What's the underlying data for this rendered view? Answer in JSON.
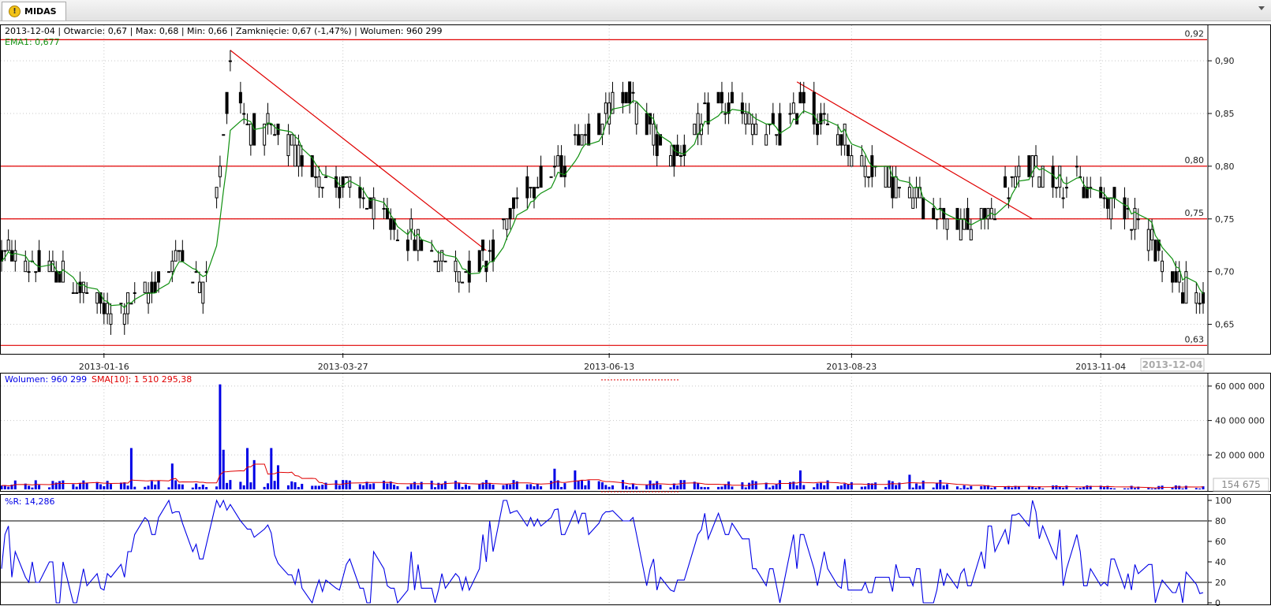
{
  "tab": {
    "icon": "warning-icon",
    "label": "MIDAS"
  },
  "price_panel": {
    "info_line": "2013-12-04 | Otwarcie: 0,67 | Max: 0,68 | Min: 0,66 | Zamknięcie: 0,67 (-1,47%)   | Wolumen: 960 299",
    "ema_label": "EMA1: 0,677",
    "cursor_date_label": "2013-12-04"
  },
  "volume_panel": {
    "volume_label": "Wolumen: 960 299",
    "sma_label": "SMA[10]: 1 510 295,38",
    "cursor_value_label": "154 675"
  },
  "williams_panel": {
    "label": "%R: 14,286"
  },
  "colors": {
    "candle": "#000000",
    "ema": "#109010",
    "line_red": "#e00000",
    "volume_bar": "#0000e6",
    "sma": "#e00000",
    "wr": "#0000e6",
    "grid": "#c8c8c8"
  },
  "chart_data": [
    {
      "type": "candlestick",
      "title": "",
      "ylabel": "",
      "ylim": [
        0.625,
        0.93
      ],
      "x_tick_labels": [
        "2013-01-16",
        "2013-03-27",
        "2013-06-13",
        "2013-08-23",
        "2013-11-04"
      ],
      "y_tick_labels": [
        "0,90",
        "0,85",
        "0,80",
        "0,75",
        "0,70",
        "0,65"
      ],
      "y_ticks": [
        0.9,
        0.85,
        0.8,
        0.75,
        0.7,
        0.65
      ],
      "x_range": [
        "2012-12-17",
        "2013-12-04"
      ],
      "horizontal_levels": [
        {
          "value": 0.92,
          "label": "0,92"
        },
        {
          "value": 0.8,
          "label": "0,80"
        },
        {
          "value": 0.75,
          "label": "0,75"
        },
        {
          "value": 0.63,
          "label": "0,63"
        }
      ],
      "trend_lines": [
        {
          "from": [
            "2013-02-22",
            0.91
          ],
          "to": [
            "2013-05-08",
            0.72
          ]
        },
        {
          "from": [
            "2013-08-07",
            0.88
          ],
          "to": [
            "2013-10-15",
            0.75
          ]
        }
      ],
      "ema_series_name": "EMA1",
      "anchors": [
        [
          "2012-12-17",
          0.72
        ],
        [
          "2012-12-24",
          0.71
        ],
        [
          "2013-01-02",
          0.7
        ],
        [
          "2013-01-10",
          0.68
        ],
        [
          "2013-01-18",
          0.66
        ],
        [
          "2013-01-25",
          0.67
        ],
        [
          "2013-02-01",
          0.69
        ],
        [
          "2013-02-08",
          0.72
        ],
        [
          "2013-02-14",
          0.68
        ],
        [
          "2013-02-20",
          0.82
        ],
        [
          "2013-02-22",
          0.9
        ],
        [
          "2013-02-27",
          0.84
        ],
        [
          "2013-03-06",
          0.83
        ],
        [
          "2013-03-14",
          0.81
        ],
        [
          "2013-03-21",
          0.79
        ],
        [
          "2013-03-28",
          0.78
        ],
        [
          "2013-04-04",
          0.76
        ],
        [
          "2013-04-11",
          0.74
        ],
        [
          "2013-04-18",
          0.73
        ],
        [
          "2013-04-25",
          0.71
        ],
        [
          "2013-05-02",
          0.7
        ],
        [
          "2013-05-09",
          0.72
        ],
        [
          "2013-05-16",
          0.76
        ],
        [
          "2013-05-23",
          0.79
        ],
        [
          "2013-05-30",
          0.8
        ],
        [
          "2013-06-04",
          0.83
        ],
        [
          "2013-06-12",
          0.85
        ],
        [
          "2013-06-18",
          0.87
        ],
        [
          "2013-06-24",
          0.84
        ],
        [
          "2013-07-01",
          0.81
        ],
        [
          "2013-07-08",
          0.83
        ],
        [
          "2013-07-15",
          0.86
        ],
        [
          "2013-07-22",
          0.85
        ],
        [
          "2013-07-29",
          0.83
        ],
        [
          "2013-08-05",
          0.84
        ],
        [
          "2013-08-09",
          0.87
        ],
        [
          "2013-08-14",
          0.84
        ],
        [
          "2013-08-20",
          0.83
        ],
        [
          "2013-08-27",
          0.8
        ],
        [
          "2013-09-03",
          0.79
        ],
        [
          "2013-09-10",
          0.77
        ],
        [
          "2013-09-17",
          0.76
        ],
        [
          "2013-09-24",
          0.74
        ],
        [
          "2013-10-01",
          0.75
        ],
        [
          "2013-10-08",
          0.78
        ],
        [
          "2013-10-15",
          0.8
        ],
        [
          "2013-10-22",
          0.79
        ],
        [
          "2013-10-29",
          0.78
        ],
        [
          "2013-11-05",
          0.77
        ],
        [
          "2013-11-12",
          0.76
        ],
        [
          "2013-11-19",
          0.73
        ],
        [
          "2013-11-26",
          0.69
        ],
        [
          "2013-12-04",
          0.67
        ]
      ]
    },
    {
      "type": "bar",
      "title": "",
      "ylim": [
        0,
        65000000
      ],
      "y_ticks": [
        60000000,
        40000000,
        20000000
      ],
      "y_tick_labels": [
        "60 000 000",
        "40 000 000",
        "20 000 000"
      ],
      "series": [
        {
          "name": "Wolumen"
        },
        {
          "name": "SMA[10]"
        }
      ],
      "typical_volume": 3500000,
      "spikes": [
        [
          "2013-01-24",
          24000000
        ],
        [
          "2013-02-05",
          15000000
        ],
        [
          "2013-02-19",
          61000000
        ],
        [
          "2013-02-20",
          23000000
        ],
        [
          "2013-02-27",
          24000000
        ],
        [
          "2013-03-01",
          17000000
        ],
        [
          "2013-03-06",
          24000000
        ],
        [
          "2013-03-08",
          14000000
        ],
        [
          "2013-05-28",
          12000000
        ],
        [
          "2013-06-03",
          11000000
        ],
        [
          "2013-08-08",
          11000000
        ],
        [
          "2013-09-09",
          8500000
        ]
      ]
    },
    {
      "type": "line",
      "title": "",
      "ylim": [
        0,
        100
      ],
      "y_ticks": [
        100,
        80,
        60,
        40,
        20,
        0
      ],
      "y_tick_labels": [
        "100",
        "80",
        "60",
        "40",
        "20",
        "0"
      ],
      "reference_lines": [
        80,
        20
      ],
      "series": [
        {
          "name": "%R"
        }
      ]
    }
  ]
}
